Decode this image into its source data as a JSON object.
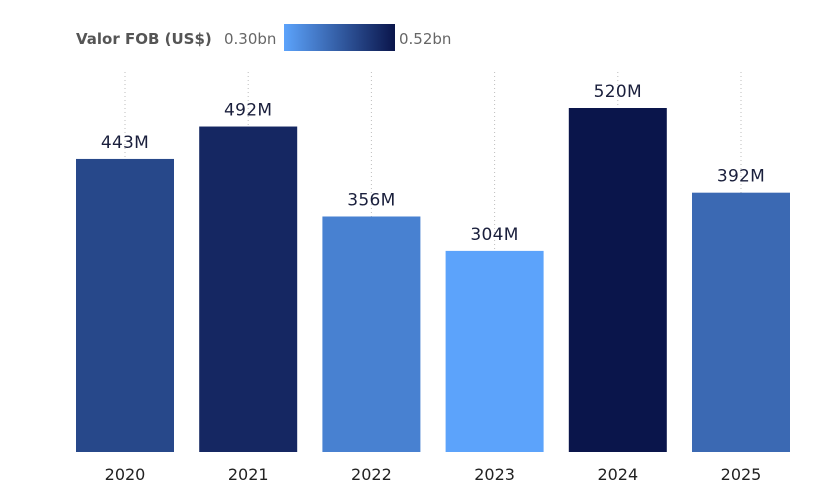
{
  "chart_data": {
    "type": "bar",
    "title": "",
    "xlabel": "",
    "ylabel": "",
    "categories": [
      "2020",
      "2021",
      "2022",
      "2023",
      "2024",
      "2025"
    ],
    "values": [
      443,
      492,
      356,
      304,
      520,
      392
    ],
    "value_labels": [
      "443M",
      "492M",
      "356M",
      "304M",
      "520M",
      "392M"
    ],
    "unit": "M",
    "ylim": [
      0,
      520
    ],
    "grid": "vertical-dotted",
    "legend": {
      "position": "top-left",
      "title": "Valor FOB (US$)",
      "min_label": "0.30bn",
      "max_label": "0.52bn",
      "min_value": 304,
      "max_value": 520,
      "min_color": "#5ca3fb",
      "max_color": "#0a154b"
    }
  }
}
